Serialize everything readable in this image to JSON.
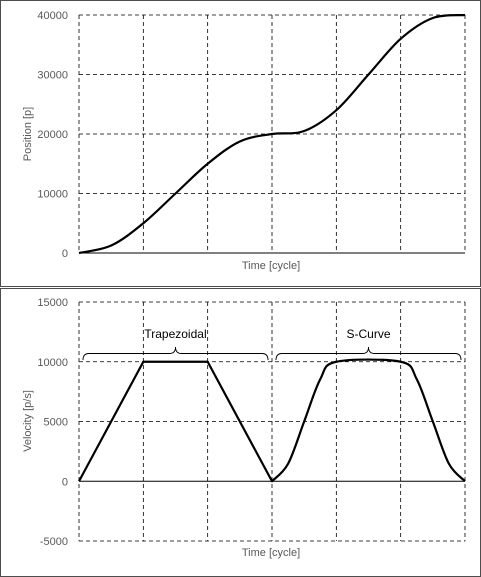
{
  "chart_data": [
    {
      "type": "line",
      "xlabel": "Time [cycle]",
      "ylabel": "Position [p]",
      "ylim": [
        0,
        40000
      ],
      "yticks": [
        "0",
        "10000",
        "20000",
        "30000",
        "40000"
      ],
      "grid": true,
      "x": [
        0,
        0.5,
        1,
        1.5,
        2,
        2.5,
        3,
        3.5,
        4,
        4.5,
        5,
        5.5,
        6
      ],
      "series": [
        {
          "values": [
            0,
            1250,
            5000,
            10000,
            15000,
            18750,
            20000,
            20500,
            24000,
            30000,
            36000,
            39500,
            40000
          ]
        }
      ]
    },
    {
      "type": "line",
      "xlabel": "Time [cycle]",
      "ylabel": "Velocity [p/s]",
      "ylim": [
        -5000,
        15000
      ],
      "yticks": [
        "-5000",
        "0",
        "5000",
        "10000",
        "15000"
      ],
      "grid": true,
      "annotations": [
        {
          "text": "Trapezoidal",
          "x_start": 0,
          "x_end": 3
        },
        {
          "text": "S-Curve",
          "x_start": 3,
          "x_end": 6
        }
      ],
      "series": [
        {
          "x": [
            0,
            1,
            2,
            3,
            3.25,
            3.5,
            3.75,
            4,
            5,
            5.25,
            5.5,
            5.75,
            6
          ],
          "values": [
            0,
            10000,
            10000,
            0,
            1464,
            5000,
            8536,
            10000,
            10000,
            8536,
            5000,
            1464,
            0
          ]
        }
      ]
    }
  ]
}
